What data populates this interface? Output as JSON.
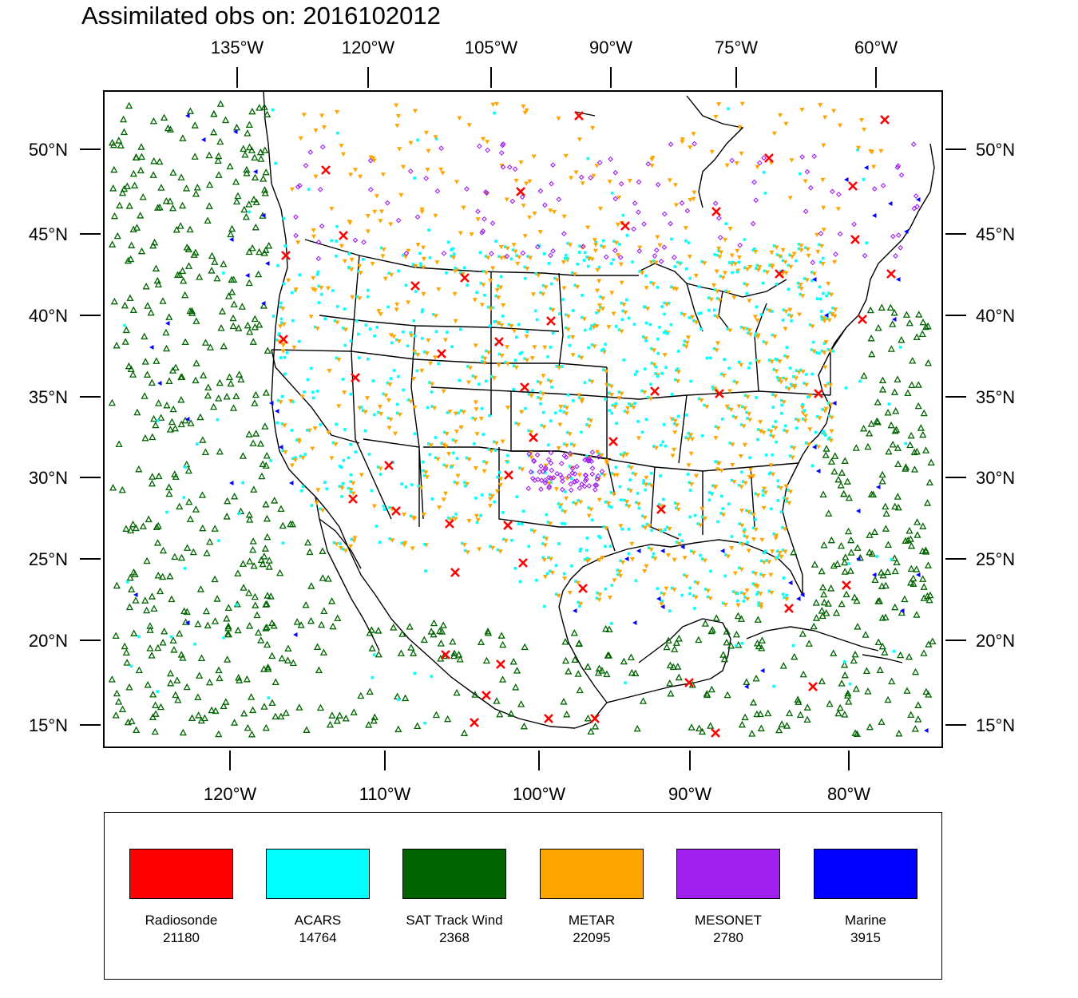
{
  "title": "Assimilated obs on: 2016102012",
  "top_lon_labels": [
    "135°W",
    "120°W",
    "105°W",
    "90°W",
    "75°W",
    "60°W"
  ],
  "bottom_lon_labels": [
    "120°W",
    "110°W",
    "100°W",
    "90°W",
    "80°W"
  ],
  "lat_labels": [
    "50°N",
    "45°N",
    "40°N",
    "35°N",
    "30°N",
    "25°N",
    "20°N",
    "15°N"
  ],
  "legend": [
    {
      "name": "Radiosonde",
      "count": "21180",
      "color": "#ff0000",
      "marker": "x"
    },
    {
      "name": "ACARS",
      "count": "14764",
      "color": "#00ffff",
      "marker": "square"
    },
    {
      "name": "SAT Track Wind",
      "count": "2368",
      "color": "#006400",
      "marker": "triangle"
    },
    {
      "name": "METAR",
      "count": "22095",
      "color": "#ffa500",
      "marker": "triangle-down"
    },
    {
      "name": "MESONET",
      "count": "2780",
      "color": "#a020f0",
      "marker": "diamond"
    },
    {
      "name": "Marine",
      "count": "3915",
      "color": "#0000ff",
      "marker": "triangle-left"
    }
  ],
  "icons": {
    "coastline": "coastline-map",
    "borders": "state-borders"
  }
}
